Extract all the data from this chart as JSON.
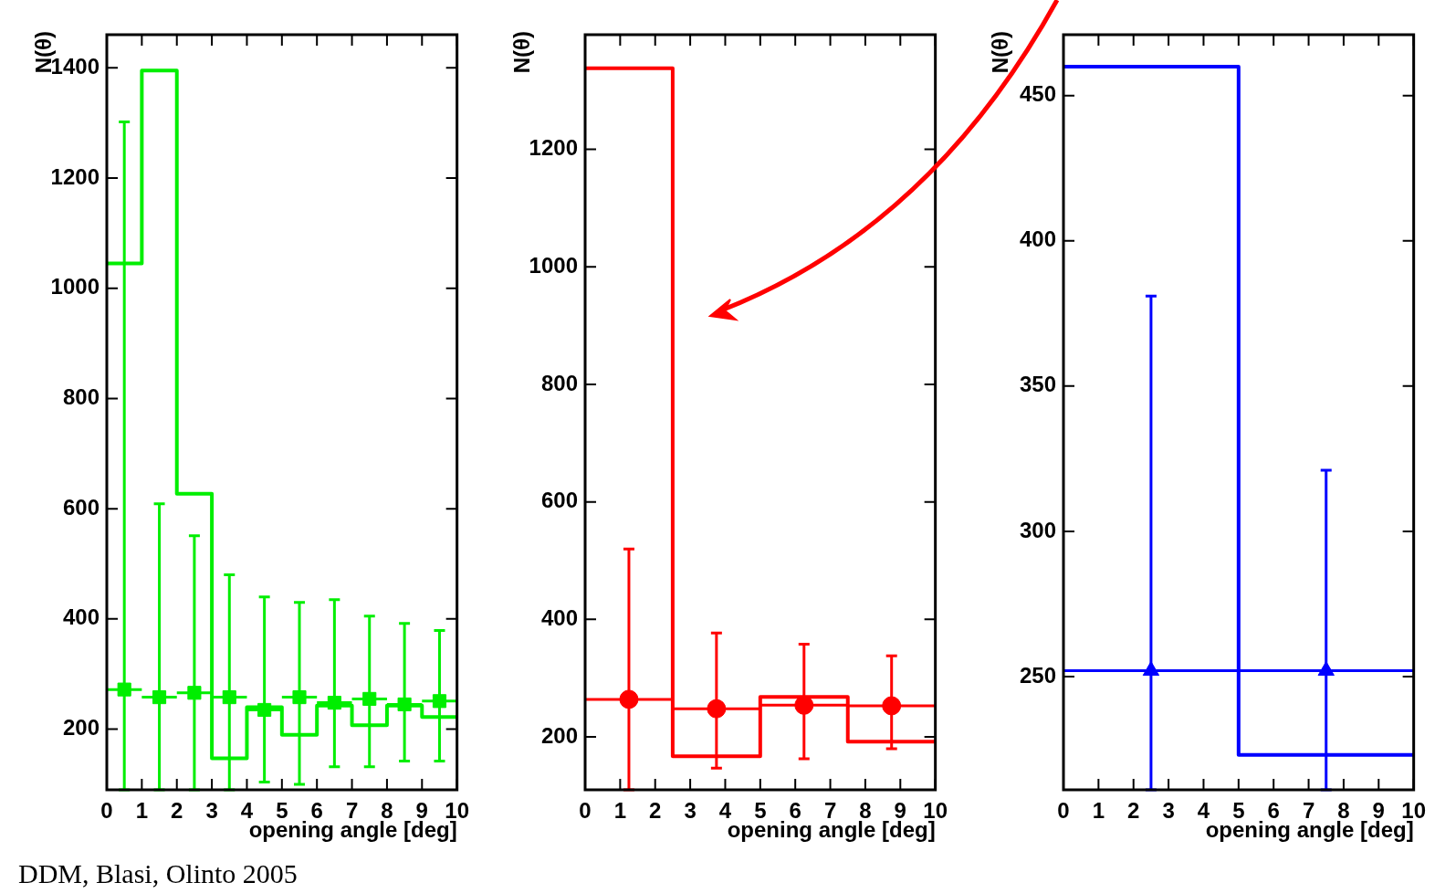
{
  "chart_data": [
    {
      "type": "histogram",
      "ylabel": "N(θ)",
      "xlabel": "opening angle [deg]",
      "xlim": [
        0,
        10
      ],
      "xticks": [
        0,
        1,
        2,
        3,
        4,
        5,
        6,
        7,
        8,
        9,
        10
      ],
      "ylim": [
        90,
        1460
      ],
      "yticks": [
        200,
        400,
        600,
        800,
        1000,
        1200,
        1400
      ],
      "annotations": [
        "DDM, Blasi, Olinto 2005"
      ],
      "series": [
        {
          "color": "#00ee00",
          "bins": [
            0,
            1,
            2,
            3,
            4,
            5,
            6,
            7,
            8,
            9,
            10
          ],
          "values": [
            1045,
            1395,
            627,
            147,
            240,
            190,
            243,
            207,
            243,
            222
          ]
        },
        {
          "type": "scatter",
          "color": "#00ee00",
          "marker": "square",
          "x": [
            0.5,
            1.5,
            2.5,
            3.5,
            4.5,
            5.5,
            6.5,
            7.5,
            8.5,
            9.5
          ],
          "values": [
            272,
            258,
            266,
            258,
            235,
            258,
            248,
            255,
            245,
            251
          ],
          "errors": [
            [
              90,
              1302
            ],
            [
              90,
              609
            ],
            [
              90,
              551
            ],
            [
              90,
              480
            ],
            [
              104,
              440
            ],
            [
              100,
              430
            ],
            [
              132,
              435
            ],
            [
              132,
              405
            ],
            [
              142,
              392
            ],
            [
              142,
              379
            ]
          ],
          "xerrors": [
            0.5,
            0.5,
            0.5,
            0.5,
            0.5,
            0.5,
            0.5,
            0.5,
            0.5,
            0.5
          ]
        }
      ]
    },
    {
      "type": "histogram",
      "ylabel": "N(θ)",
      "xlabel": "opening angle [deg]",
      "xlim": [
        0,
        10
      ],
      "xticks": [
        0,
        1,
        2,
        3,
        4,
        5,
        6,
        7,
        8,
        9,
        10
      ],
      "ylim": [
        110,
        1395
      ],
      "yticks": [
        200,
        400,
        600,
        800,
        1000,
        1200
      ],
      "series": [
        {
          "color": "#ff0000",
          "bins": [
            0,
            2.5,
            5,
            7.5,
            10
          ],
          "values": [
            1338,
            167,
            268,
            192
          ]
        },
        {
          "type": "scatter",
          "color": "#ff0000",
          "marker": "circle",
          "x": [
            1.25,
            3.75,
            6.25,
            8.75
          ],
          "values": [
            264,
            248,
            254,
            253
          ],
          "errors": [
            [
              110,
              520
            ],
            [
              147,
              377
            ],
            [
              163,
              358
            ],
            [
              180,
              338
            ]
          ],
          "xerrors": [
            1.25,
            1.25,
            1.25,
            1.25
          ]
        }
      ]
    },
    {
      "type": "histogram",
      "ylabel": "N(θ)",
      "xlabel": "opening angle [deg]",
      "xlim": [
        0,
        10
      ],
      "xticks": [
        0,
        1,
        2,
        3,
        4,
        5,
        6,
        7,
        8,
        9,
        10
      ],
      "ylim": [
        211,
        471
      ],
      "yticks": [
        250,
        300,
        350,
        400,
        450
      ],
      "series": [
        {
          "color": "#0000ff",
          "bins": [
            0,
            5,
            10
          ],
          "values": [
            460,
            223
          ]
        },
        {
          "type": "scatter",
          "color": "#0000ff",
          "marker": "triangle",
          "x": [
            2.5,
            7.5
          ],
          "values": [
            252,
            252
          ],
          "errors": [
            [
              211,
              381
            ],
            [
              211,
              321
            ]
          ],
          "xerrors": [
            2.5,
            2.5
          ]
        }
      ]
    }
  ]
}
